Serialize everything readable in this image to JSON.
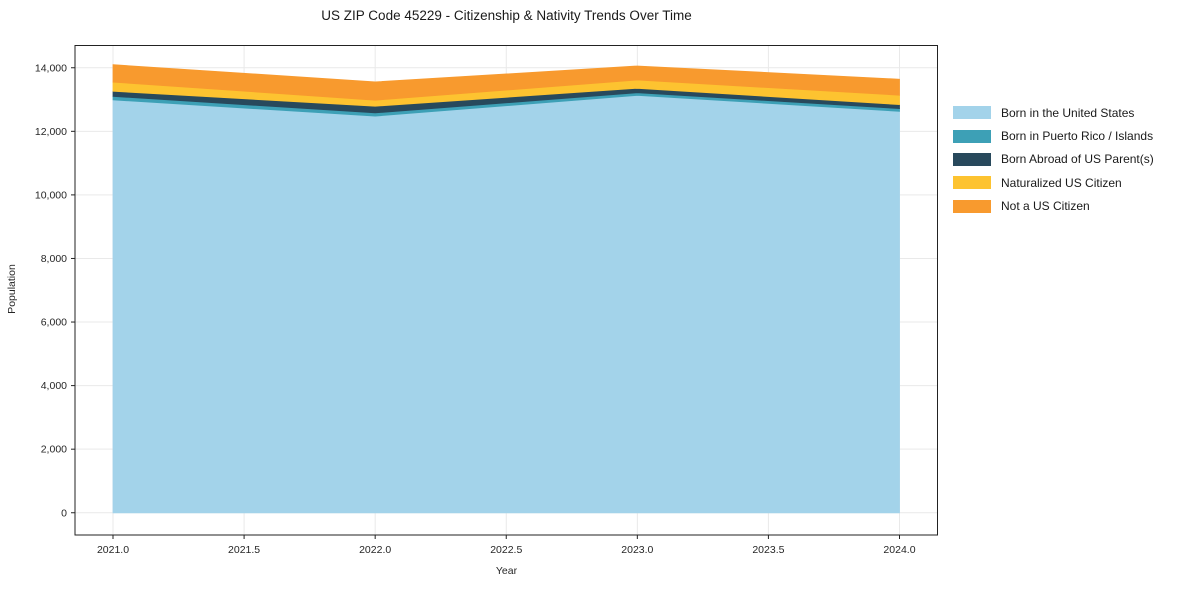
{
  "title": "US ZIP Code 45229 - Citizenship & Nativity Trends Over Time",
  "chart_data": {
    "type": "area",
    "stacked": true,
    "title": "US ZIP Code 45229 - Citizenship & Nativity Trends Over Time",
    "xlabel": "Year",
    "ylabel": "Population",
    "x": [
      2021,
      2022,
      2023,
      2024
    ],
    "series": [
      {
        "name": "Born in the United States",
        "color": "#a3d3ea",
        "values": [
          12990,
          12480,
          13130,
          12630
        ]
      },
      {
        "name": "Born in Puerto Rico / Islands",
        "color": "#3da0b6",
        "values": [
          110,
          100,
          85,
          85
        ]
      },
      {
        "name": "Born Abroad of US Parent(s)",
        "color": "#28495c",
        "values": [
          160,
          210,
          140,
          125
        ]
      },
      {
        "name": "Naturalized US Citizen",
        "color": "#fdc330",
        "values": [
          290,
          190,
          260,
          295
        ]
      },
      {
        "name": "Not a US Citizen",
        "color": "#f89a2e",
        "values": [
          545,
          575,
          440,
          505
        ]
      }
    ],
    "totals": [
      14095,
      13555,
      14055,
      13640
    ],
    "xticks": {
      "values": [
        2021.0,
        2021.5,
        2022.0,
        2022.5,
        2023.0,
        2023.5,
        2024.0
      ],
      "labels": [
        "2021.0",
        "2021.5",
        "2022.0",
        "2022.5",
        "2023.0",
        "2023.5",
        "2024.0"
      ]
    },
    "yticks": {
      "values": [
        0,
        2000,
        4000,
        6000,
        8000,
        10000,
        12000,
        14000
      ],
      "labels": [
        "0",
        "2,000",
        "4,000",
        "6,000",
        "8,000",
        "10,000",
        "12,000",
        "14,000"
      ]
    },
    "xlim": [
      2020.855,
      2024.145
    ],
    "ylim": [
      -700,
      14700
    ],
    "grid": true,
    "legend_position": "outside-right"
  },
  "colors": {
    "background": "#ffffff",
    "grid": "#e9e9e9",
    "spine": "#222222",
    "tick_text": "#262626",
    "title_text": "#1a1a1a"
  }
}
